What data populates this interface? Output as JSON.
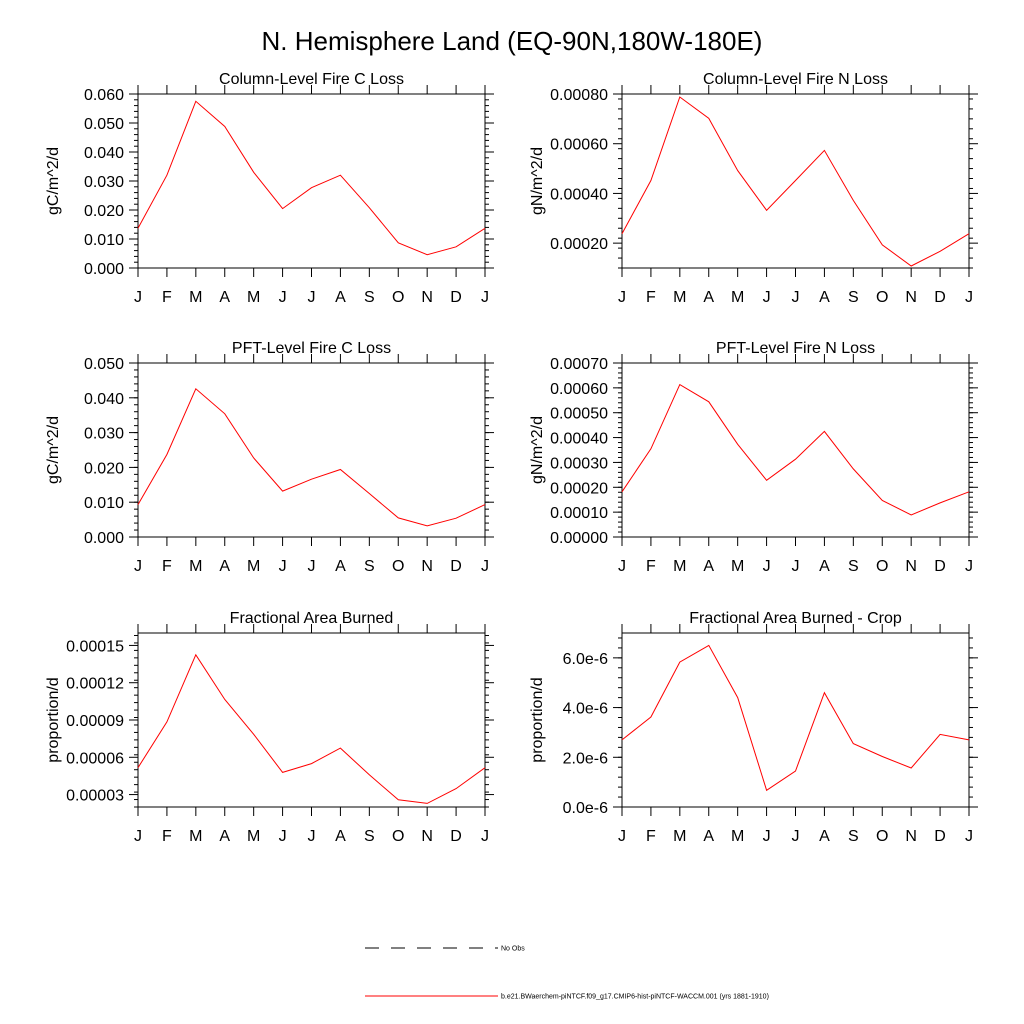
{
  "title": "N. Hemisphere Land (EQ-90N,180W-180E)",
  "months": [
    "J",
    "F",
    "M",
    "A",
    "M",
    "J",
    "J",
    "A",
    "S",
    "O",
    "N",
    "D",
    "J"
  ],
  "legend": {
    "obs_label": "No Obs",
    "model_label": "b.e21.BWaerchem-piNTCF.f09_g17.CMIP6-hist-piNTCF-WACCM.001 (yrs 1881-1910)",
    "model_color": "#ff0000",
    "obs_color": "#000000"
  },
  "chart_data": [
    {
      "type": "line",
      "title": "Column-Level Fire C Loss",
      "ylabel": "gC/m^2/d",
      "ylim": [
        0,
        0.06
      ],
      "yticks": [
        0,
        0.01,
        0.02,
        0.03,
        0.04,
        0.05,
        0.06
      ],
      "ytick_labels": [
        "0.000",
        "0.010",
        "0.020",
        "0.030",
        "0.040",
        "0.050",
        "0.060"
      ],
      "x": [
        "J",
        "F",
        "M",
        "A",
        "M",
        "J",
        "J",
        "A",
        "S",
        "O",
        "N",
        "D",
        "J"
      ],
      "values": [
        0.0137,
        0.032,
        0.0575,
        0.0488,
        0.033,
        0.0205,
        0.0277,
        0.032,
        0.0208,
        0.0087,
        0.0046,
        0.0073,
        0.0137
      ]
    },
    {
      "type": "line",
      "title": "Column-Level Fire N Loss",
      "ylabel": "gN/m^2/d",
      "ylim": [
        0.0001,
        0.0008
      ],
      "yticks": [
        0.0002,
        0.0004,
        0.0006,
        0.0008
      ],
      "ytick_labels": [
        "0.00020",
        "0.00040",
        "0.00060",
        "0.00080"
      ],
      "x": [
        "J",
        "F",
        "M",
        "A",
        "M",
        "J",
        "J",
        "A",
        "S",
        "O",
        "N",
        "D",
        "J"
      ],
      "values": [
        0.000238,
        0.000452,
        0.000788,
        0.000702,
        0.000492,
        0.000332,
        0.000452,
        0.000573,
        0.000372,
        0.000193,
        0.000108,
        0.000167,
        0.000238
      ]
    },
    {
      "type": "line",
      "title": "PFT-Level Fire C Loss",
      "ylabel": "gC/m^2/d",
      "ylim": [
        0,
        0.05
      ],
      "yticks": [
        0,
        0.01,
        0.02,
        0.03,
        0.04,
        0.05
      ],
      "ytick_labels": [
        "0.000",
        "0.010",
        "0.020",
        "0.030",
        "0.040",
        "0.050"
      ],
      "x": [
        "J",
        "F",
        "M",
        "A",
        "M",
        "J",
        "J",
        "A",
        "S",
        "O",
        "N",
        "D",
        "J"
      ],
      "values": [
        0.0093,
        0.0237,
        0.0426,
        0.0354,
        0.0227,
        0.0132,
        0.0166,
        0.0194,
        0.0125,
        0.0055,
        0.0032,
        0.0054,
        0.0093
      ]
    },
    {
      "type": "line",
      "title": "PFT-Level Fire N Loss",
      "ylabel": "gN/m^2/d",
      "ylim": [
        0,
        0.0007
      ],
      "yticks": [
        0,
        0.0001,
        0.0002,
        0.0003,
        0.0004,
        0.0005,
        0.0006,
        0.0007
      ],
      "ytick_labels": [
        "0.00000",
        "0.00010",
        "0.00020",
        "0.00030",
        "0.00040",
        "0.00050",
        "0.00060",
        "0.00070"
      ],
      "x": [
        "J",
        "F",
        "M",
        "A",
        "M",
        "J",
        "J",
        "A",
        "S",
        "O",
        "N",
        "D",
        "J"
      ],
      "values": [
        0.000182,
        0.000355,
        0.000613,
        0.000544,
        0.000373,
        0.000228,
        0.000313,
        0.000425,
        0.000274,
        0.000147,
        8.9e-05,
        0.000137,
        0.000182
      ]
    },
    {
      "type": "line",
      "title": "Fractional Area Burned",
      "ylabel": "proportion/d",
      "ylim": [
        2e-05,
        0.00016
      ],
      "yticks": [
        3e-05,
        6e-05,
        9e-05,
        0.00012,
        0.00015
      ],
      "ytick_labels": [
        "0.00003",
        "0.00006",
        "0.00009",
        "0.00012",
        "0.00015"
      ],
      "x": [
        "J",
        "F",
        "M",
        "A",
        "M",
        "J",
        "J",
        "A",
        "S",
        "O",
        "N",
        "D",
        "J"
      ],
      "values": [
        5.16e-05,
        8.85e-05,
        0.0001425,
        0.0001065,
        7.85e-05,
        4.78e-05,
        5.49e-05,
        6.74e-05,
        4.59e-05,
        2.58e-05,
        2.29e-05,
        3.48e-05,
        5.16e-05
      ]
    },
    {
      "type": "line",
      "title": "Fractional Area Burned - Crop",
      "ylabel": "proportion/d",
      "ylim": [
        0,
        7e-06
      ],
      "yticks": [
        0,
        2e-06,
        4e-06,
        6e-06
      ],
      "ytick_labels": [
        "0.0e-6",
        "2.0e-6",
        "4.0e-6",
        "6.0e-6"
      ],
      "x": [
        "J",
        "F",
        "M",
        "A",
        "M",
        "J",
        "J",
        "A",
        "S",
        "O",
        "N",
        "D",
        "J"
      ],
      "values": [
        2.7e-06,
        3.62e-06,
        5.83e-06,
        6.5e-06,
        4.4e-06,
        6.7e-07,
        1.45e-06,
        4.6e-06,
        2.55e-06,
        2.03e-06,
        1.57e-06,
        2.92e-06,
        2.7e-06
      ]
    }
  ]
}
